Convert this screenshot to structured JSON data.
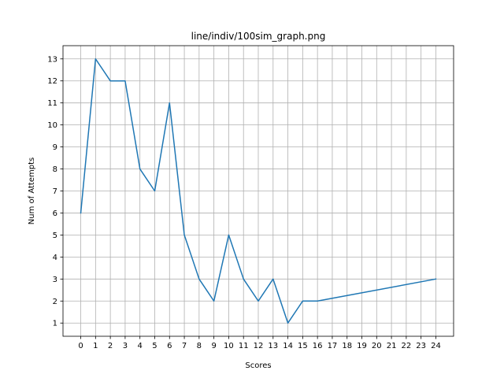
{
  "chart_data": {
    "type": "line",
    "title": "line/indiv/100sim_graph.png",
    "xlabel": "Scores",
    "ylabel": "Num of Attempts",
    "x": [
      0,
      1,
      2,
      3,
      4,
      5,
      6,
      7,
      8,
      9,
      10,
      11,
      12,
      13,
      14,
      15,
      16,
      24
    ],
    "series": [
      {
        "values": [
          6,
          13,
          12,
          12,
          8,
          7,
          11,
          5,
          3,
          2,
          5,
          3,
          2,
          3,
          1,
          2,
          2,
          3
        ],
        "color": "#1f77b4"
      }
    ],
    "xticks": [
      0,
      1,
      2,
      3,
      4,
      5,
      6,
      7,
      8,
      9,
      10,
      11,
      12,
      13,
      14,
      15,
      16,
      17,
      18,
      19,
      20,
      21,
      22,
      23,
      24
    ],
    "yticks": [
      1,
      2,
      3,
      4,
      5,
      6,
      7,
      8,
      9,
      10,
      11,
      12,
      13
    ],
    "xlim": [
      -1.2,
      25.2
    ],
    "ylim": [
      0.4,
      13.6
    ],
    "grid": true,
    "grid_color": "#b0b0b0",
    "legend": false
  }
}
